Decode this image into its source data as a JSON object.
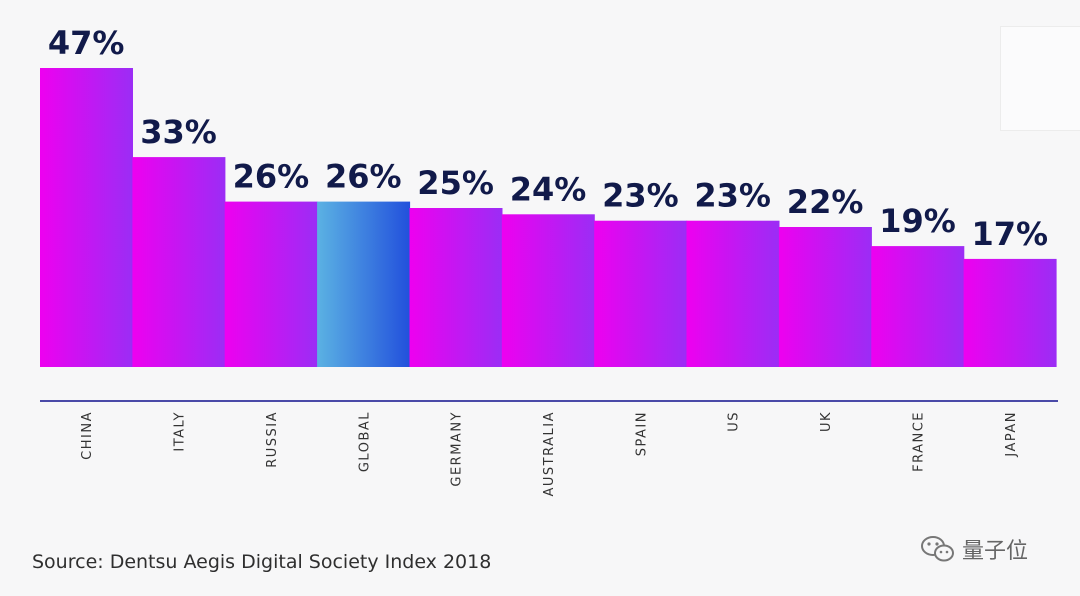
{
  "chart_data": {
    "type": "bar",
    "categories": [
      "CHINA",
      "ITALY",
      "RUSSIA",
      "GLOBAL",
      "GERMANY",
      "AUSTRALIA",
      "SPAIN",
      "US",
      "UK",
      "FRANCE",
      "JAPAN"
    ],
    "values": [
      47,
      33,
      26,
      26,
      25,
      24,
      23,
      23,
      22,
      19,
      17
    ],
    "data_labels": [
      "47%",
      "33%",
      "26%",
      "26%",
      "25%",
      "24%",
      "23%",
      "23%",
      "22%",
      "19%",
      "17%"
    ],
    "highlight_category": "GLOBAL",
    "colors": {
      "bar_start": "#ee00f0",
      "bar_end": "#9b2df5",
      "highlight_start": "#5bb2e3",
      "highlight_end": "#2250dc",
      "axis": "#4a4aa8",
      "label": "#111a4a"
    },
    "title": "",
    "xlabel": "",
    "ylabel": "",
    "grid": false,
    "legend": "none"
  },
  "source_text": "Source: Dentsu Aegis Digital Society Index 2018",
  "watermark": {
    "icon": "wechat-icon",
    "text": "量子位"
  }
}
